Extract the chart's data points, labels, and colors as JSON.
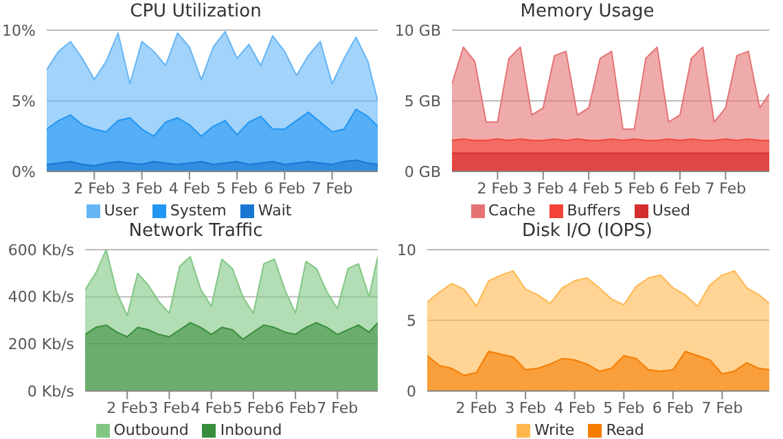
{
  "chart_data": [
    {
      "type": "area",
      "title": "CPU Utilization",
      "legend": "bottom",
      "grid": "y",
      "x": [
        "--02-01T00:00",
        "--02-01T06:00",
        "--02-01T12:00",
        "--02-01T18:00",
        "--02-02T00:00",
        "--02-02T06:00",
        "--02-02T12:00",
        "--02-02T18:00",
        "--02-03T00:00",
        "--02-03T06:00",
        "--02-03T12:00",
        "--02-03T18:00",
        "--02-04T00:00",
        "--02-04T06:00",
        "--02-04T12:00",
        "--02-04T18:00",
        "--02-05T00:00",
        "--02-05T06:00",
        "--02-05T12:00",
        "--02-05T18:00",
        "--02-06T00:00",
        "--02-06T06:00",
        "--02-06T12:00",
        "--02-06T18:00",
        "--02-07T00:00",
        "--02-07T06:00",
        "--02-07T12:00",
        "--02-07T18:00",
        "--02-07T23:00"
      ],
      "xlim": [
        "--02-01T00:00",
        "--02-07T23:00"
      ],
      "xticks": [
        {
          "value": "--02-02",
          "label": "2 Feb"
        },
        {
          "value": "--02-03",
          "label": "3 Feb"
        },
        {
          "value": "--02-04",
          "label": "4 Feb"
        },
        {
          "value": "--02-05",
          "label": "5 Feb"
        },
        {
          "value": "--02-06",
          "label": "6 Feb"
        },
        {
          "value": "--02-07",
          "label": "7 Feb"
        }
      ],
      "ylim": [
        0,
        10
      ],
      "yticks": [
        {
          "value": 0,
          "label": "0%"
        },
        {
          "value": 5,
          "label": "5%"
        },
        {
          "value": 10,
          "label": "10%"
        }
      ],
      "series": [
        {
          "name": "User",
          "color": "#64b5f6",
          "values": [
            7.2,
            8.5,
            9.2,
            8.0,
            6.5,
            7.8,
            9.8,
            6.2,
            9.2,
            8.5,
            7.5,
            9.8,
            8.8,
            6.5,
            8.8,
            9.9,
            8.0,
            9.0,
            7.5,
            9.6,
            8.5,
            6.8,
            8.2,
            9.2,
            6.2,
            8.0,
            9.5,
            7.8,
            5.0
          ]
        },
        {
          "name": "System",
          "color": "#2196f3",
          "values": [
            3.0,
            3.6,
            4.0,
            3.3,
            3.0,
            2.8,
            3.6,
            3.8,
            3.0,
            2.5,
            3.5,
            3.8,
            3.3,
            2.5,
            3.2,
            3.6,
            2.6,
            3.5,
            3.9,
            3.0,
            3.0,
            3.6,
            4.2,
            3.5,
            2.8,
            3.0,
            4.4,
            3.9,
            3.2
          ]
        },
        {
          "name": "Wait",
          "color": "#1976d2",
          "values": [
            0.5,
            0.6,
            0.7,
            0.5,
            0.4,
            0.6,
            0.7,
            0.6,
            0.5,
            0.7,
            0.6,
            0.5,
            0.6,
            0.7,
            0.5,
            0.6,
            0.7,
            0.5,
            0.6,
            0.7,
            0.5,
            0.6,
            0.7,
            0.6,
            0.5,
            0.7,
            0.8,
            0.6,
            0.5
          ]
        }
      ]
    },
    {
      "type": "area",
      "title": "Memory Usage",
      "legend": "bottom",
      "grid": "y",
      "x": [
        "--02-01T00:00",
        "--02-01T06:00",
        "--02-01T12:00",
        "--02-01T18:00",
        "--02-02T00:00",
        "--02-02T06:00",
        "--02-02T12:00",
        "--02-02T18:00",
        "--02-03T00:00",
        "--02-03T06:00",
        "--02-03T12:00",
        "--02-03T18:00",
        "--02-04T00:00",
        "--02-04T06:00",
        "--02-04T12:00",
        "--02-04T18:00",
        "--02-05T00:00",
        "--02-05T06:00",
        "--02-05T12:00",
        "--02-05T18:00",
        "--02-06T00:00",
        "--02-06T06:00",
        "--02-06T12:00",
        "--02-06T18:00",
        "--02-07T00:00",
        "--02-07T06:00",
        "--02-07T12:00",
        "--02-07T18:00",
        "--02-07T23:00"
      ],
      "xlim": [
        "--02-01T00:00",
        "--02-07T23:00"
      ],
      "xticks": [
        {
          "value": "--02-02",
          "label": "2 Feb"
        },
        {
          "value": "--02-03",
          "label": "3 Feb"
        },
        {
          "value": "--02-04",
          "label": "4 Feb"
        },
        {
          "value": "--02-05",
          "label": "5 Feb"
        },
        {
          "value": "--02-06",
          "label": "6 Feb"
        },
        {
          "value": "--02-07",
          "label": "7 Feb"
        }
      ],
      "ylim": [
        0,
        10
      ],
      "yticks": [
        {
          "value": 0,
          "label": "0 GB"
        },
        {
          "value": 5,
          "label": "5 GB"
        },
        {
          "value": 10,
          "label": "10 GB"
        }
      ],
      "series": [
        {
          "name": "Cache",
          "color": "#e57373",
          "values": [
            6.2,
            8.8,
            7.8,
            3.5,
            3.5,
            8.0,
            8.8,
            4.0,
            4.5,
            8.2,
            8.5,
            4.0,
            4.5,
            8.0,
            8.5,
            3.0,
            3.0,
            8.0,
            8.8,
            3.5,
            4.0,
            8.0,
            8.8,
            3.5,
            4.5,
            8.2,
            8.5,
            4.5,
            5.5
          ]
        },
        {
          "name": "Buffers",
          "color": "#f44336",
          "values": [
            2.2,
            2.3,
            2.2,
            2.2,
            2.3,
            2.2,
            2.3,
            2.2,
            2.2,
            2.3,
            2.2,
            2.3,
            2.2,
            2.2,
            2.3,
            2.2,
            2.3,
            2.2,
            2.2,
            2.3,
            2.2,
            2.3,
            2.2,
            2.2,
            2.3,
            2.2,
            2.3,
            2.2,
            2.2
          ]
        },
        {
          "name": "Used",
          "color": "#d32f2f",
          "values": [
            1.3,
            1.3,
            1.3,
            1.3,
            1.3,
            1.3,
            1.3,
            1.3,
            1.3,
            1.3,
            1.3,
            1.3,
            1.3,
            1.3,
            1.3,
            1.3,
            1.3,
            1.3,
            1.3,
            1.3,
            1.3,
            1.3,
            1.3,
            1.3,
            1.3,
            1.3,
            1.3,
            1.3,
            1.3
          ]
        }
      ]
    },
    {
      "type": "area",
      "title": "Network Traffic",
      "legend": "bottom",
      "grid": "y",
      "x": [
        "--02-01T00:00",
        "--02-01T06:00",
        "--02-01T12:00",
        "--02-01T18:00",
        "--02-02T00:00",
        "--02-02T06:00",
        "--02-02T12:00",
        "--02-02T18:00",
        "--02-03T00:00",
        "--02-03T06:00",
        "--02-03T12:00",
        "--02-03T18:00",
        "--02-04T00:00",
        "--02-04T06:00",
        "--02-04T12:00",
        "--02-04T18:00",
        "--02-05T00:00",
        "--02-05T06:00",
        "--02-05T12:00",
        "--02-05T18:00",
        "--02-06T00:00",
        "--02-06T06:00",
        "--02-06T12:00",
        "--02-06T18:00",
        "--02-07T00:00",
        "--02-07T06:00",
        "--02-07T12:00",
        "--02-07T18:00",
        "--02-07T23:00"
      ],
      "xlim": [
        "--02-01T00:00",
        "--02-07T23:00"
      ],
      "xticks": [
        {
          "value": "--02-02",
          "label": "2 Feb"
        },
        {
          "value": "--02-03",
          "label": "3 Feb"
        },
        {
          "value": "--02-04",
          "label": "4 Feb"
        },
        {
          "value": "--02-05",
          "label": "5 Feb"
        },
        {
          "value": "--02-06",
          "label": "6 Feb"
        },
        {
          "value": "--02-07",
          "label": "7 Feb"
        }
      ],
      "ylim": [
        0,
        600
      ],
      "yticks": [
        {
          "value": 0,
          "label": "0 Kb/s"
        },
        {
          "value": 200,
          "label": "200 Kb/s"
        },
        {
          "value": 400,
          "label": "400 Kb/s"
        },
        {
          "value": 600,
          "label": "600 Kb/s"
        }
      ],
      "series": [
        {
          "name": "Outbound",
          "color": "#81c784",
          "values": [
            430,
            500,
            600,
            420,
            320,
            500,
            450,
            380,
            330,
            530,
            570,
            430,
            360,
            560,
            520,
            400,
            330,
            540,
            560,
            430,
            330,
            550,
            520,
            420,
            350,
            520,
            540,
            400,
            570
          ]
        },
        {
          "name": "Inbound",
          "color": "#388e3c",
          "values": [
            240,
            270,
            280,
            250,
            230,
            270,
            260,
            240,
            230,
            260,
            290,
            270,
            240,
            270,
            260,
            220,
            250,
            280,
            270,
            250,
            240,
            270,
            290,
            270,
            240,
            260,
            280,
            250,
            290
          ]
        }
      ]
    },
    {
      "type": "area",
      "title": "Disk I/O (IOPS)",
      "legend": "bottom",
      "grid": "y",
      "x": [
        "--02-01T00:00",
        "--02-01T06:00",
        "--02-01T12:00",
        "--02-01T18:00",
        "--02-02T00:00",
        "--02-02T06:00",
        "--02-02T12:00",
        "--02-02T18:00",
        "--02-03T00:00",
        "--02-03T06:00",
        "--02-03T12:00",
        "--02-03T18:00",
        "--02-04T00:00",
        "--02-04T06:00",
        "--02-04T12:00",
        "--02-04T18:00",
        "--02-05T00:00",
        "--02-05T06:00",
        "--02-05T12:00",
        "--02-05T18:00",
        "--02-06T00:00",
        "--02-06T06:00",
        "--02-06T12:00",
        "--02-06T18:00",
        "--02-07T00:00",
        "--02-07T06:00",
        "--02-07T12:00",
        "--02-07T18:00",
        "--02-07T23:00"
      ],
      "xlim": [
        "--02-01T00:00",
        "--02-07T23:00"
      ],
      "xticks": [
        {
          "value": "--02-02",
          "label": "2 Feb"
        },
        {
          "value": "--02-03",
          "label": "3 Feb"
        },
        {
          "value": "--02-04",
          "label": "4 Feb"
        },
        {
          "value": "--02-05",
          "label": "5 Feb"
        },
        {
          "value": "--02-06",
          "label": "6 Feb"
        },
        {
          "value": "--02-07",
          "label": "7 Feb"
        }
      ],
      "ylim": [
        0,
        10
      ],
      "yticks": [
        0,
        5,
        10
      ],
      "series": [
        {
          "name": "Write",
          "color": "#ffb74d",
          "values": [
            6.3,
            7.0,
            7.6,
            7.2,
            6.0,
            7.8,
            8.2,
            8.5,
            7.2,
            6.8,
            6.2,
            7.3,
            7.8,
            8.0,
            7.3,
            6.5,
            6.1,
            7.4,
            8.0,
            8.2,
            7.3,
            6.8,
            6.0,
            7.5,
            8.2,
            8.5,
            7.3,
            6.8,
            6.2
          ]
        },
        {
          "name": "Read",
          "color": "#f57c00",
          "values": [
            2.5,
            1.8,
            1.6,
            1.1,
            1.3,
            2.8,
            2.6,
            2.4,
            1.5,
            1.6,
            1.9,
            2.3,
            2.2,
            1.9,
            1.4,
            1.6,
            2.5,
            2.3,
            1.5,
            1.4,
            1.5,
            2.8,
            2.5,
            2.2,
            1.2,
            1.4,
            2.0,
            1.6,
            1.5
          ]
        }
      ]
    }
  ]
}
